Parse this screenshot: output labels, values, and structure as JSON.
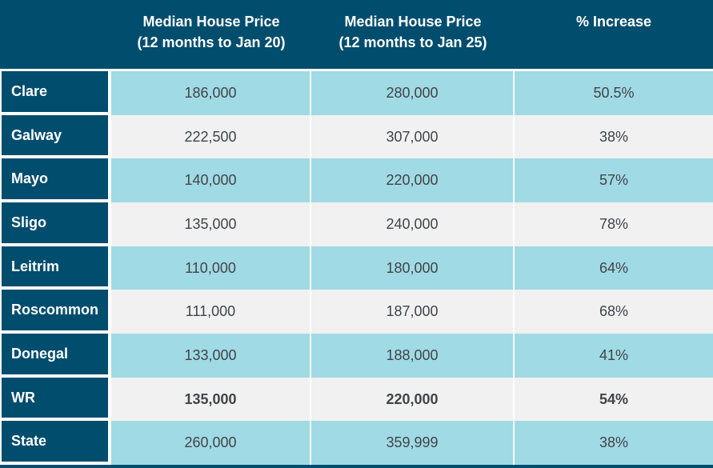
{
  "colors": {
    "header_bg": "#004D6E",
    "row_label_bg": "#004D6E",
    "row_alt_blue": "#A0DAE4",
    "row_alt_gray": "#F1F1F2",
    "header_text": "#FFFFFF",
    "data_text": "#414449"
  },
  "table": {
    "header": {
      "col1": {
        "line1": "Median House Price",
        "line2": "(12 months to Jan 20)"
      },
      "col2": {
        "line1": "Median House Price",
        "line2": "(12 months to Jan 25)"
      },
      "col3": {
        "line1": "% Increase"
      }
    },
    "rows": [
      {
        "label": "Clare",
        "price_jan20": "186,000",
        "price_jan25": "280,000",
        "increase": "50.5%",
        "bold": false
      },
      {
        "label": "Galway",
        "price_jan20": "222,500",
        "price_jan25": "307,000",
        "increase": "38%",
        "bold": false
      },
      {
        "label": "Mayo",
        "price_jan20": "140,000",
        "price_jan25": "220,000",
        "increase": "57%",
        "bold": false
      },
      {
        "label": "Sligo",
        "price_jan20": "135,000",
        "price_jan25": "240,000",
        "increase": "78%",
        "bold": false
      },
      {
        "label": "Leitrim",
        "price_jan20": "110,000",
        "price_jan25": "180,000",
        "increase": "64%",
        "bold": false
      },
      {
        "label": "Roscommon",
        "price_jan20": "111,000",
        "price_jan25": "187,000",
        "increase": "68%",
        "bold": false
      },
      {
        "label": "Donegal",
        "price_jan20": "133,000",
        "price_jan25": "188,000",
        "increase": "41%",
        "bold": false
      },
      {
        "label": "WR",
        "price_jan20": "135,000",
        "price_jan25": "220,000",
        "increase": "54%",
        "bold": true
      },
      {
        "label": "State",
        "price_jan20": "260,000",
        "price_jan25": "359,999",
        "increase": "38%",
        "bold": false
      }
    ]
  },
  "chart_data": {
    "type": "table",
    "columns": [
      "",
      "Median House Price (12 months to Jan 20)",
      "Median House Price (12 months to Jan 25)",
      "% Increase"
    ],
    "rows": [
      [
        "Clare",
        186000,
        280000,
        "50.5%"
      ],
      [
        "Galway",
        222500,
        307000,
        "38%"
      ],
      [
        "Mayo",
        140000,
        220000,
        "57%"
      ],
      [
        "Sligo",
        135000,
        240000,
        "78%"
      ],
      [
        "Leitrim",
        110000,
        180000,
        "64%"
      ],
      [
        "Roscommon",
        111000,
        187000,
        "68%"
      ],
      [
        "Donegal",
        133000,
        188000,
        "41%"
      ],
      [
        "WR",
        135000,
        220000,
        "54%"
      ],
      [
        "State",
        260000,
        359999,
        "38%"
      ]
    ],
    "notes": "Row shading alternates light blue / light gray; WR row values are bold; header and row-label cells are dark teal with white bold text"
  }
}
